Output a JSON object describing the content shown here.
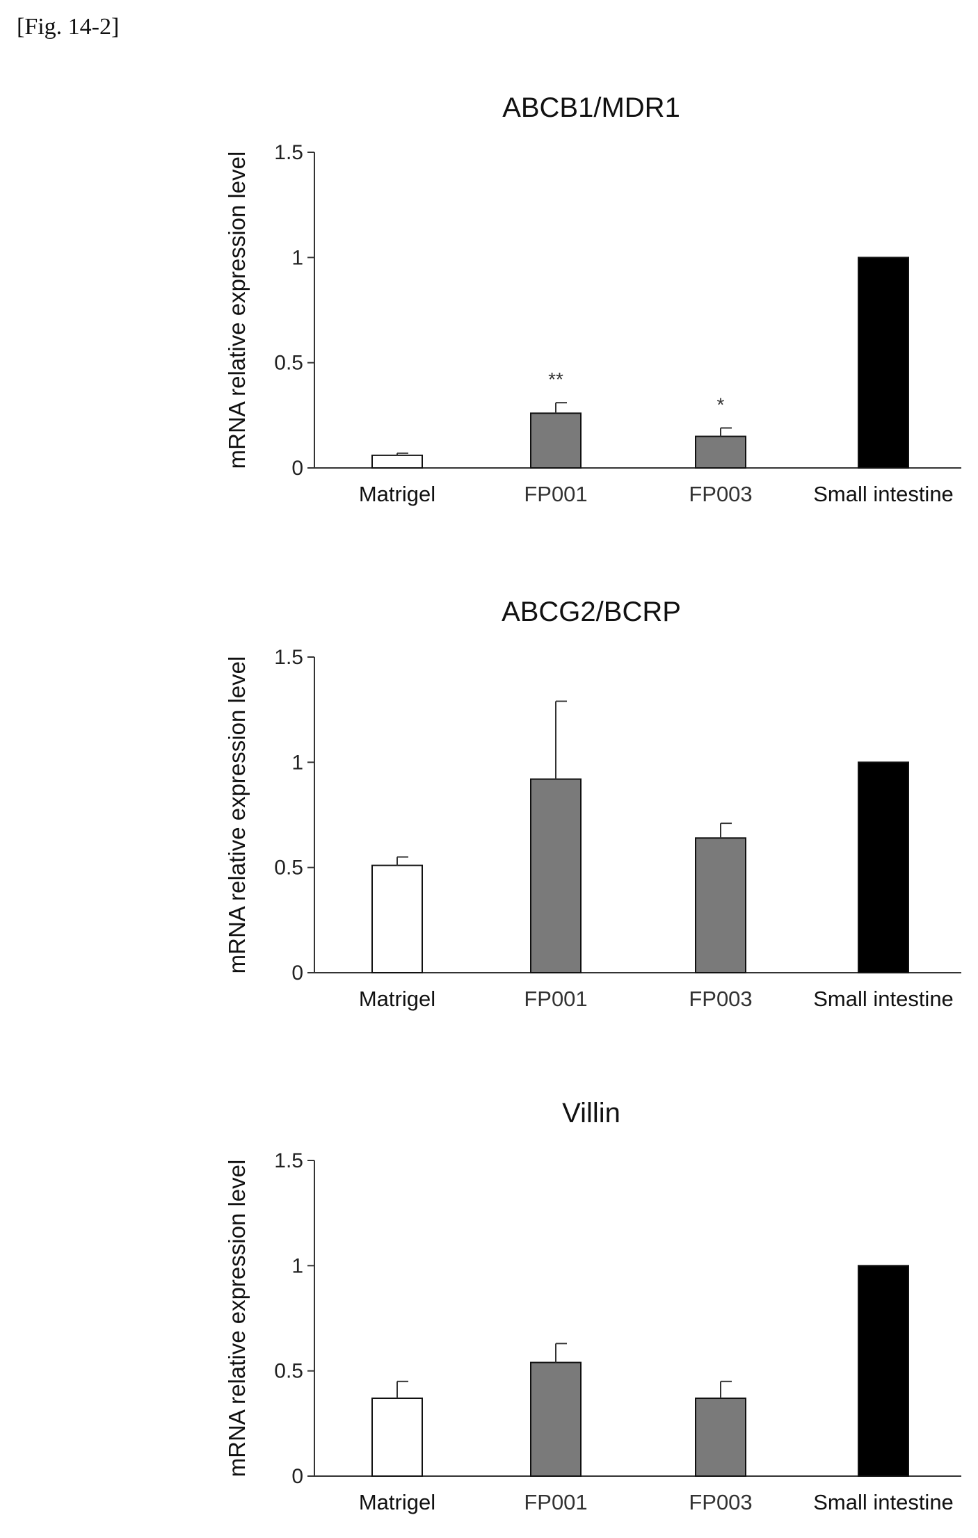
{
  "figure_label": "[Fig. 14-2]",
  "chart_data": [
    {
      "type": "bar",
      "title": "ABCB1/MDR1",
      "ylabel": "mRNA relative expression level",
      "xlabel": "",
      "ylim": [
        0,
        1.5
      ],
      "yticks": [
        0,
        0.5,
        1,
        1.5
      ],
      "ytick_labels": [
        "0",
        "0.5",
        "1",
        "1.5"
      ],
      "categories": [
        "Matrigel",
        "FP001",
        "FP003",
        "Small intestine"
      ],
      "values": [
        0.06,
        0.26,
        0.15,
        1.0
      ],
      "errors": [
        0.01,
        0.05,
        0.04,
        0
      ],
      "annotations": [
        "",
        "**",
        "*",
        ""
      ],
      "bar_colors": [
        "#ffffff",
        "#7a7a7a",
        "#7a7a7a",
        "#000000"
      ]
    },
    {
      "type": "bar",
      "title": "ABCG2/BCRP",
      "ylabel": "mRNA relative expression level",
      "xlabel": "",
      "ylim": [
        0,
        1.5
      ],
      "yticks": [
        0,
        0.5,
        1,
        1.5
      ],
      "ytick_labels": [
        "0",
        "0.5",
        "1",
        "1.5"
      ],
      "categories": [
        "Matrigel",
        "FP001",
        "FP003",
        "Small intestine"
      ],
      "values": [
        0.51,
        0.92,
        0.64,
        1.0
      ],
      "errors": [
        0.04,
        0.37,
        0.07,
        0
      ],
      "annotations": [
        "",
        "",
        "",
        ""
      ],
      "bar_colors": [
        "#ffffff",
        "#7a7a7a",
        "#7a7a7a",
        "#000000"
      ]
    },
    {
      "type": "bar",
      "title": "Villin",
      "ylabel": "mRNA relative expression level",
      "xlabel": "",
      "ylim": [
        0,
        1.5
      ],
      "yticks": [
        0,
        0.5,
        1,
        1.5
      ],
      "ytick_labels": [
        "0",
        "0.5",
        "1",
        "1.5"
      ],
      "categories": [
        "Matrigel",
        "FP001",
        "FP003",
        "Small intestine"
      ],
      "values": [
        0.37,
        0.54,
        0.37,
        1.0
      ],
      "errors": [
        0.08,
        0.09,
        0.08,
        0
      ],
      "annotations": [
        "",
        "",
        "",
        ""
      ],
      "bar_colors": [
        "#ffffff",
        "#7a7a7a",
        "#7a7a7a",
        "#000000"
      ]
    }
  ]
}
